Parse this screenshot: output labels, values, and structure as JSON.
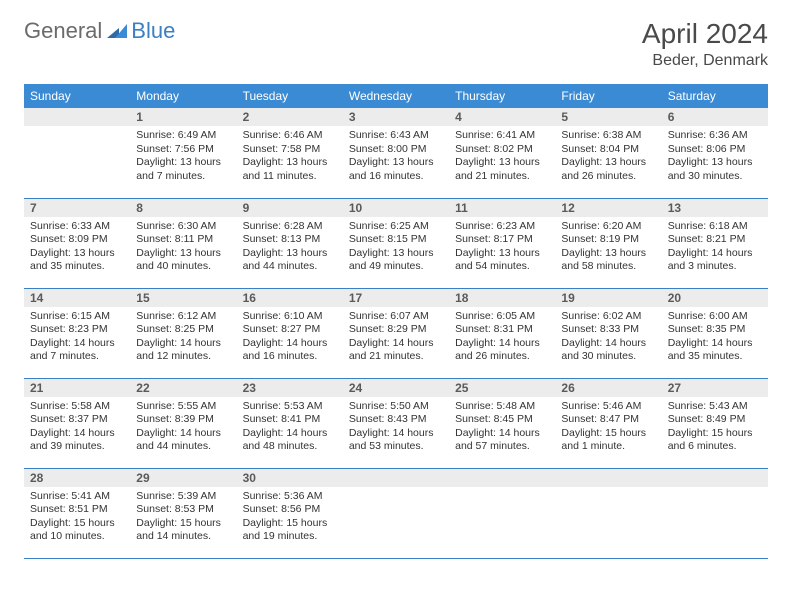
{
  "logo": {
    "word1": "General",
    "word2": "Blue"
  },
  "title": "April 2024",
  "location": "Beder, Denmark",
  "colors": {
    "header_bg": "#3b8bd4",
    "header_text": "#ffffff",
    "accent_line": "#3b7fc4",
    "daynum_bg": "#ececec",
    "text": "#333333",
    "logo_gray": "#6b6b6b",
    "logo_blue": "#3b7fc4"
  },
  "weekdays": [
    "Sunday",
    "Monday",
    "Tuesday",
    "Wednesday",
    "Thursday",
    "Friday",
    "Saturday"
  ],
  "weeks": [
    [
      null,
      {
        "n": "1",
        "sr": "6:49 AM",
        "ss": "7:56 PM",
        "dl": "13 hours and 7 minutes."
      },
      {
        "n": "2",
        "sr": "6:46 AM",
        "ss": "7:58 PM",
        "dl": "13 hours and 11 minutes."
      },
      {
        "n": "3",
        "sr": "6:43 AM",
        "ss": "8:00 PM",
        "dl": "13 hours and 16 minutes."
      },
      {
        "n": "4",
        "sr": "6:41 AM",
        "ss": "8:02 PM",
        "dl": "13 hours and 21 minutes."
      },
      {
        "n": "5",
        "sr": "6:38 AM",
        "ss": "8:04 PM",
        "dl": "13 hours and 26 minutes."
      },
      {
        "n": "6",
        "sr": "6:36 AM",
        "ss": "8:06 PM",
        "dl": "13 hours and 30 minutes."
      }
    ],
    [
      {
        "n": "7",
        "sr": "6:33 AM",
        "ss": "8:09 PM",
        "dl": "13 hours and 35 minutes."
      },
      {
        "n": "8",
        "sr": "6:30 AM",
        "ss": "8:11 PM",
        "dl": "13 hours and 40 minutes."
      },
      {
        "n": "9",
        "sr": "6:28 AM",
        "ss": "8:13 PM",
        "dl": "13 hours and 44 minutes."
      },
      {
        "n": "10",
        "sr": "6:25 AM",
        "ss": "8:15 PM",
        "dl": "13 hours and 49 minutes."
      },
      {
        "n": "11",
        "sr": "6:23 AM",
        "ss": "8:17 PM",
        "dl": "13 hours and 54 minutes."
      },
      {
        "n": "12",
        "sr": "6:20 AM",
        "ss": "8:19 PM",
        "dl": "13 hours and 58 minutes."
      },
      {
        "n": "13",
        "sr": "6:18 AM",
        "ss": "8:21 PM",
        "dl": "14 hours and 3 minutes."
      }
    ],
    [
      {
        "n": "14",
        "sr": "6:15 AM",
        "ss": "8:23 PM",
        "dl": "14 hours and 7 minutes."
      },
      {
        "n": "15",
        "sr": "6:12 AM",
        "ss": "8:25 PM",
        "dl": "14 hours and 12 minutes."
      },
      {
        "n": "16",
        "sr": "6:10 AM",
        "ss": "8:27 PM",
        "dl": "14 hours and 16 minutes."
      },
      {
        "n": "17",
        "sr": "6:07 AM",
        "ss": "8:29 PM",
        "dl": "14 hours and 21 minutes."
      },
      {
        "n": "18",
        "sr": "6:05 AM",
        "ss": "8:31 PM",
        "dl": "14 hours and 26 minutes."
      },
      {
        "n": "19",
        "sr": "6:02 AM",
        "ss": "8:33 PM",
        "dl": "14 hours and 30 minutes."
      },
      {
        "n": "20",
        "sr": "6:00 AM",
        "ss": "8:35 PM",
        "dl": "14 hours and 35 minutes."
      }
    ],
    [
      {
        "n": "21",
        "sr": "5:58 AM",
        "ss": "8:37 PM",
        "dl": "14 hours and 39 minutes."
      },
      {
        "n": "22",
        "sr": "5:55 AM",
        "ss": "8:39 PM",
        "dl": "14 hours and 44 minutes."
      },
      {
        "n": "23",
        "sr": "5:53 AM",
        "ss": "8:41 PM",
        "dl": "14 hours and 48 minutes."
      },
      {
        "n": "24",
        "sr": "5:50 AM",
        "ss": "8:43 PM",
        "dl": "14 hours and 53 minutes."
      },
      {
        "n": "25",
        "sr": "5:48 AM",
        "ss": "8:45 PM",
        "dl": "14 hours and 57 minutes."
      },
      {
        "n": "26",
        "sr": "5:46 AM",
        "ss": "8:47 PM",
        "dl": "15 hours and 1 minute."
      },
      {
        "n": "27",
        "sr": "5:43 AM",
        "ss": "8:49 PM",
        "dl": "15 hours and 6 minutes."
      }
    ],
    [
      {
        "n": "28",
        "sr": "5:41 AM",
        "ss": "8:51 PM",
        "dl": "15 hours and 10 minutes."
      },
      {
        "n": "29",
        "sr": "5:39 AM",
        "ss": "8:53 PM",
        "dl": "15 hours and 14 minutes."
      },
      {
        "n": "30",
        "sr": "5:36 AM",
        "ss": "8:56 PM",
        "dl": "15 hours and 19 minutes."
      },
      null,
      null,
      null,
      null
    ]
  ],
  "labels": {
    "sunrise": "Sunrise:",
    "sunset": "Sunset:",
    "daylight": "Daylight:"
  }
}
